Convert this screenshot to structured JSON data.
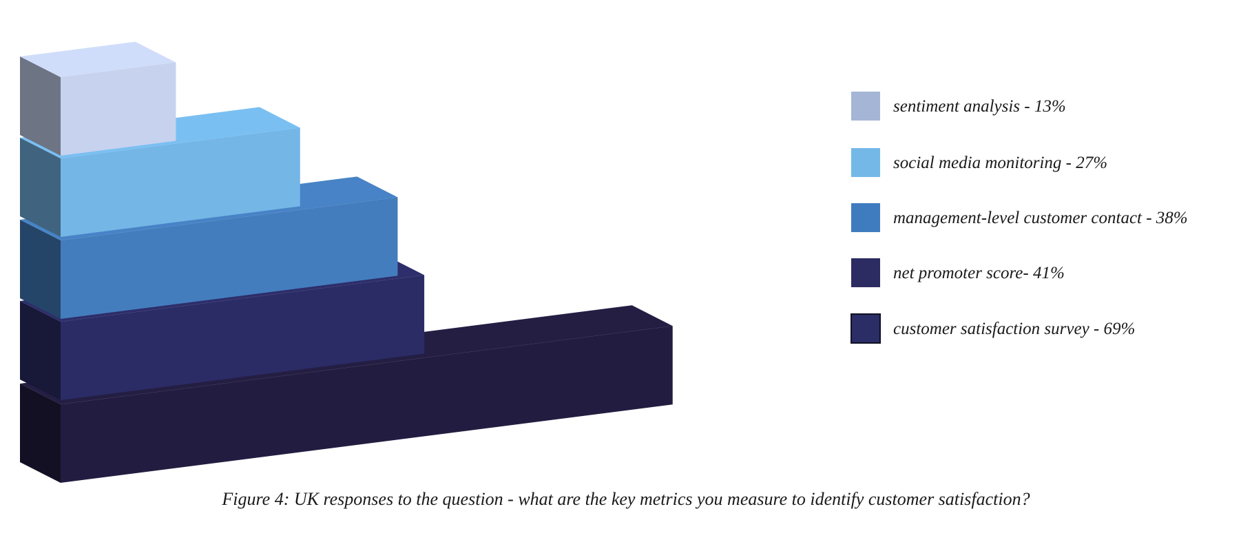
{
  "chart_data": {
    "type": "bar",
    "orientation": "horizontal",
    "style": "3d",
    "categories": [
      "sentiment analysis - 13%",
      "social media monitoring - 27%",
      "management-level customer contact - 38%",
      "net promoter score- 41%",
      "customer satisfaction survey - 69%"
    ],
    "values": [
      13,
      27,
      38,
      41,
      69
    ],
    "unit": "%",
    "colors": [
      "#c6d2ee",
      "#74b6e6",
      "#447dbd",
      "#2b2c66",
      "#221d40"
    ],
    "legend": {
      "placement": "right",
      "entries": [
        {
          "label": "sentiment analysis - 13%",
          "color": "#a5b5d6"
        },
        {
          "label": "social media monitoring - 27%",
          "color": "#74b8e8"
        },
        {
          "label": "management-level customer contact - 38%",
          "color": "#3f7cbf"
        },
        {
          "label": "net promoter score- 41%",
          "color": "#2c2b62"
        },
        {
          "label": "customer satisfaction survey - 69%",
          "color": "#2b2d66"
        }
      ]
    },
    "grid": false,
    "axes_visible": false
  },
  "caption": "Figure 4: UK responses to the question - what are the key metrics you measure to identify customer satisfaction?"
}
